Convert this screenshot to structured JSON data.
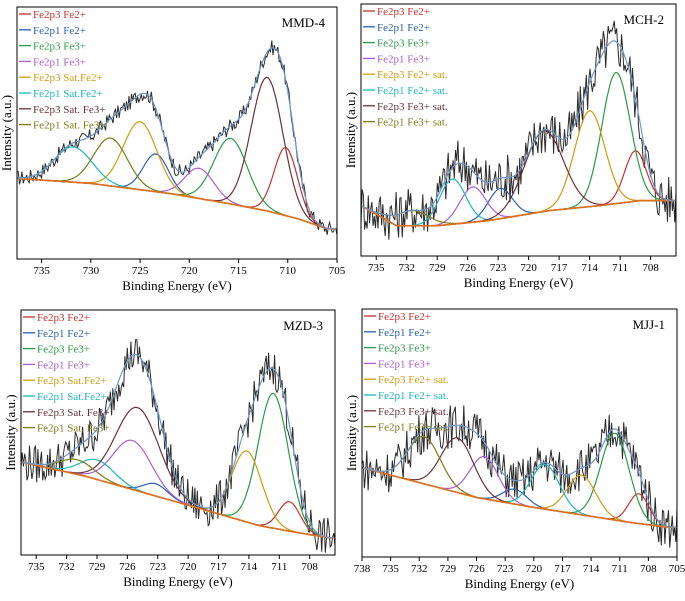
{
  "figure": {
    "colors": {
      "raw": "#2b2b2b",
      "envelope": "#6f97c9",
      "background": "#e0701e",
      "Fe2p3 Fe2+": "#c9302c",
      "Fe2p1 Fe2+": "#2a5fb0",
      "Fe2p3 Fe3+": "#2c9a4a",
      "Fe2p1 Fe3+": "#a95ed6",
      "Fe2p3 Sat.Fe2+": "#d19b12",
      "Fe2p1 Sat.Fe2+": "#1cb6bd",
      "Fe2p3 Sat. Fe3+": "#6b3338",
      "Fe2p1 Sat. Fe3+": "#7d7c17"
    }
  },
  "chart_data": [
    {
      "type": "line",
      "title": "MMD-4",
      "xlabel": "Binding Energy (eV)",
      "ylabel": "Intensity (a.u.)",
      "xlim": [
        737.5,
        705
      ],
      "xticks": [
        735,
        730,
        725,
        720,
        715,
        710,
        705
      ],
      "ylim": [
        0,
        1
      ],
      "legend_placement": "top-left",
      "legend": [
        "Fe2p3 Fe2+",
        "Fe2p1 Fe2+",
        "Fe2p3 Fe3+",
        "Fe2p1 Fe3+",
        "Fe2p3 Sat.Fe2+",
        "Fe2p1 Sat.Fe2+",
        "Fe2p3 Sat. Fe3+",
        "Fe2p1 Sat. Fe3+"
      ],
      "background": [
        [
          737.5,
          0.32
        ],
        [
          730,
          0.3
        ],
        [
          722,
          0.26
        ],
        [
          716,
          0.22
        ],
        [
          712,
          0.19
        ],
        [
          709,
          0.16
        ],
        [
          706,
          0.12
        ]
      ],
      "components": [
        {
          "name": "Fe2p3 Fe2+",
          "center": 710.2,
          "height": 0.27,
          "fwhm": 2.8
        },
        {
          "name": "Fe2p1 Fe2+",
          "center": 723.4,
          "height": 0.15,
          "fwhm": 3.0
        },
        {
          "name": "Fe2p3 Fe3+",
          "center": 715.8,
          "height": 0.26,
          "fwhm": 4.0
        },
        {
          "name": "Fe2p1 Fe3+",
          "center": 719.0,
          "height": 0.12,
          "fwhm": 3.5
        },
        {
          "name": "Fe2p3 Sat.Fe2+",
          "center": 725.0,
          "height": 0.27,
          "fwhm": 4.0
        },
        {
          "name": "Fe2p1 Sat.Fe2+",
          "center": 731.8,
          "height": 0.14,
          "fwhm": 4.5
        },
        {
          "name": "Fe2p3 Sat. Fe3+",
          "center": 712.1,
          "height": 0.53,
          "fwhm": 3.8
        },
        {
          "name": "Fe2p1 Sat. Fe3+",
          "center": 728.0,
          "height": 0.19,
          "fwhm": 4.0
        }
      ]
    },
    {
      "type": "line",
      "title": "MCH-2",
      "xlabel": "Binding Energy (eV)",
      "ylabel": "Intensity (a.u.)",
      "xlim": [
        736.5,
        705.5
      ],
      "xticks": [
        735,
        732,
        729,
        726,
        723,
        720,
        717,
        714,
        711,
        708
      ],
      "ylim": [
        0,
        1
      ],
      "legend_placement": "top-left",
      "legend": [
        "Fe2p3 Fe2+",
        "Fe2p1 Fe2+",
        "Fe2p3 Fe3+",
        "Fe2p1  Fe3+",
        "Fe2p3  Fe2+ sat.",
        "Fe2p1 Fe2+ sat.",
        "Fe2p3 Fe3+ sat.",
        "Fe2p1 Fe3+ sat."
      ],
      "background": [
        [
          736.5,
          0.2
        ],
        [
          733,
          0.12
        ],
        [
          729,
          0.12
        ],
        [
          724,
          0.14
        ],
        [
          718,
          0.18
        ],
        [
          713,
          0.2
        ],
        [
          709,
          0.22
        ],
        [
          706,
          0.22
        ]
      ],
      "components": [
        {
          "name": "Fe2p3 Fe2+",
          "center": 709.5,
          "height": 0.2,
          "fwhm": 2.5
        },
        {
          "name": "Fe2p1 Fe2+",
          "center": 722.8,
          "height": 0.12,
          "fwhm": 2.8
        },
        {
          "name": "Fe2p3 Fe3+",
          "center": 711.4,
          "height": 0.52,
          "fwhm": 3.3
        },
        {
          "name": "Fe2p1  Fe3+",
          "center": 725.5,
          "height": 0.14,
          "fwhm": 3.0
        },
        {
          "name": "Fe2p3  Fe2+ sat.",
          "center": 714.0,
          "height": 0.38,
          "fwhm": 3.5
        },
        {
          "name": "Fe2p1 Fe2+ sat.",
          "center": 727.5,
          "height": 0.18,
          "fwhm": 3.0
        },
        {
          "name": "Fe2p3 Fe3+ sat.",
          "center": 718.5,
          "height": 0.32,
          "fwhm": 4.5
        },
        {
          "name": "Fe2p1 Fe3+ sat.",
          "center": 731.5,
          "height": 0.06,
          "fwhm": 4.0
        }
      ]
    },
    {
      "type": "line",
      "title": "MZD-3",
      "xlabel": "Binding Energy (eV)",
      "ylabel": "Intensity (a.u.)",
      "xlim": [
        736.5,
        705.5
      ],
      "xticks": [
        735,
        732,
        729,
        726,
        723,
        720,
        717,
        714,
        711,
        708
      ],
      "ylim": [
        0,
        1
      ],
      "legend_placement": "top-left",
      "legend": [
        "Fe2p3 Fe2+",
        "Fe2p1 Fe2+",
        "Fe2p3 Fe3+",
        "Fe2p1  Fe3+",
        "Fe2p3 Sat.Fe2+",
        "Fe2p1 Sat.Fe2+",
        "Fe2p3 Sat. Fe3+",
        "Fe2p1 Sat. Fe3+"
      ],
      "background": [
        [
          736.5,
          0.38
        ],
        [
          730,
          0.32
        ],
        [
          724,
          0.25
        ],
        [
          718,
          0.18
        ],
        [
          713,
          0.12
        ],
        [
          709,
          0.09
        ],
        [
          706,
          0.07
        ]
      ],
      "components": [
        {
          "name": "Fe2p3 Fe2+",
          "center": 710.0,
          "height": 0.12,
          "fwhm": 2.5
        },
        {
          "name": "Fe2p1 Fe2+",
          "center": 723.2,
          "height": 0.05,
          "fwhm": 2.8
        },
        {
          "name": "Fe2p3 Fe3+",
          "center": 711.6,
          "height": 0.55,
          "fwhm": 3.5
        },
        {
          "name": "Fe2p1  Fe3+",
          "center": 725.5,
          "height": 0.2,
          "fwhm": 4.5
        },
        {
          "name": "Fe2p3 Sat.Fe2+",
          "center": 714.2,
          "height": 0.29,
          "fwhm": 3.5
        },
        {
          "name": "Fe2p1 Sat.Fe2+",
          "center": 729.0,
          "height": 0.08,
          "fwhm": 4.0
        },
        {
          "name": "Fe2p3 Sat. Fe3+",
          "center": 725.0,
          "height": 0.34,
          "fwhm": 5.0
        },
        {
          "name": "Fe2p1 Sat. Fe3+",
          "center": 731.0,
          "height": 0.06,
          "fwhm": 4.0
        }
      ]
    },
    {
      "type": "line",
      "title": "MJJ-1",
      "xlabel": "Binding Energy (eV)",
      "ylabel": "Intensity (a.u.)",
      "xlim": [
        738,
        705
      ],
      "xticks": [
        738,
        735,
        732,
        729,
        726,
        723,
        720,
        717,
        714,
        711,
        708,
        705
      ],
      "ylim": [
        0,
        1
      ],
      "legend_placement": "top-left",
      "legend": [
        "Fe2p3 Fe2+",
        "Fe2p1 Fe2+",
        "Fe2p3 Fe3+",
        "Fe2p1  Fe3+",
        "Fe2p3  Fe2+ sat.",
        "Fe2p1 Fe2+ sat.",
        "Fe2p3 Fe3+ sat.",
        "Fe2p1 Fe3+ sat."
      ],
      "background": [
        [
          738,
          0.36
        ],
        [
          732,
          0.3
        ],
        [
          726,
          0.24
        ],
        [
          720,
          0.2
        ],
        [
          715,
          0.17
        ],
        [
          710,
          0.14
        ],
        [
          706,
          0.12
        ]
      ],
      "components": [
        {
          "name": "Fe2p3 Fe2+",
          "center": 709.0,
          "height": 0.12,
          "fwhm": 2.5
        },
        {
          "name": "Fe2p1 Fe2+",
          "center": 722.0,
          "height": 0.06,
          "fwhm": 3.0
        },
        {
          "name": "Fe2p3 Fe3+",
          "center": 711.5,
          "height": 0.35,
          "fwhm": 3.5
        },
        {
          "name": "Fe2p1  Fe3+",
          "center": 725.2,
          "height": 0.17,
          "fwhm": 3.5
        },
        {
          "name": "Fe2p3  Fe2+ sat.",
          "center": 715.0,
          "height": 0.16,
          "fwhm": 3.5
        },
        {
          "name": "Fe2p1 Fe2+ sat.",
          "center": 718.8,
          "height": 0.18,
          "fwhm": 3.5
        },
        {
          "name": "Fe2p3 Fe3+ sat.",
          "center": 728.0,
          "height": 0.22,
          "fwhm": 4.0
        },
        {
          "name": "Fe2p1 Fe3+ sat.",
          "center": 731.5,
          "height": 0.19,
          "fwhm": 4.0
        }
      ]
    }
  ]
}
